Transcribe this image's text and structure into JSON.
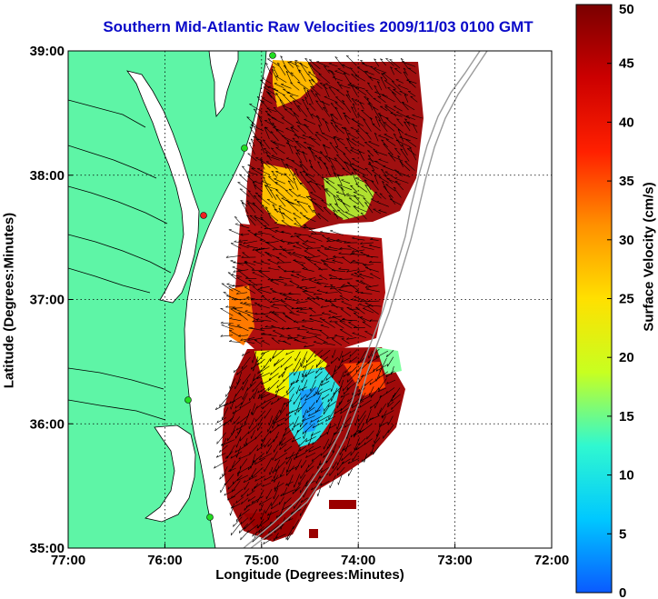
{
  "map": {
    "title": "Southern Mid-Atlantic Raw Velocities 2009/11/03 0100 GMT",
    "xlabel": "Longitude (Degrees:Minutes)",
    "ylabel": "Latitude (Degrees:Minutes)",
    "lon_range": [
      -77,
      -72
    ],
    "lat_range": [
      35,
      39
    ],
    "lon_ticks": [
      {
        "value": -77,
        "label": "77:00"
      },
      {
        "value": -76,
        "label": "76:00"
      },
      {
        "value": -75,
        "label": "75:00"
      },
      {
        "value": -74,
        "label": "74:00"
      },
      {
        "value": -73,
        "label": "73:00"
      },
      {
        "value": -72,
        "label": "72:00"
      }
    ],
    "lat_ticks": [
      {
        "value": 35,
        "label": "35:00"
      },
      {
        "value": 36,
        "label": "36:00"
      },
      {
        "value": 37,
        "label": "37:00"
      },
      {
        "value": 38,
        "label": "38:00"
      },
      {
        "value": 39,
        "label": "39:00"
      }
    ],
    "grid": true,
    "land_color": "#5ef5a6",
    "water_color": "#ffffff",
    "station_color": "#22dd22",
    "colorbar": {
      "label": "Surface Velocity (cm/s)",
      "min": 0,
      "max": 50,
      "ticks": [
        {
          "value": 0,
          "label": "0"
        },
        {
          "value": 5,
          "label": "5"
        },
        {
          "value": 10,
          "label": "10"
        },
        {
          "value": 15,
          "label": "15"
        },
        {
          "value": 20,
          "label": "20"
        },
        {
          "value": 25,
          "label": "25"
        },
        {
          "value": 30,
          "label": "30"
        },
        {
          "value": 35,
          "label": "35"
        },
        {
          "value": 40,
          "label": "40"
        },
        {
          "value": 45,
          "label": "45"
        },
        {
          "value": 50,
          "label": "50"
        }
      ],
      "colors": [
        "#0a5aff",
        "#00c8ff",
        "#30f8d0",
        "#c8ff20",
        "#ffe000",
        "#ff9000",
        "#ff2000",
        "#cc0000",
        "#7a0000"
      ]
    }
  }
}
